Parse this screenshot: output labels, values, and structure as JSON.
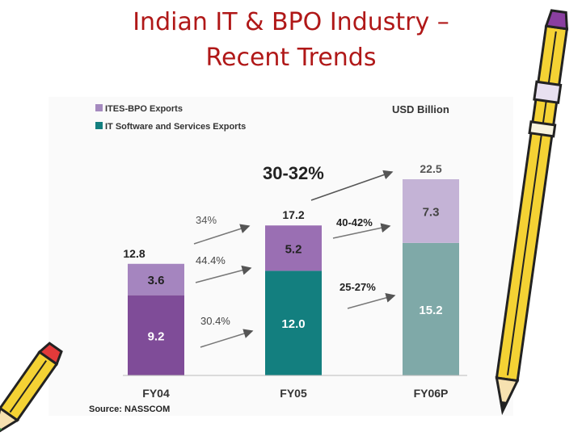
{
  "title": {
    "line1": "Indian IT & BPO Industry –",
    "line2": "Recent Trends"
  },
  "chart_data": {
    "type": "bar",
    "stacked": true,
    "unit_label": "USD Billion",
    "categories": [
      "FY04",
      "FY05",
      "FY06P"
    ],
    "series": [
      {
        "name": "IT Software and Services Exports",
        "values": [
          9.2,
          12.0,
          15.2
        ],
        "labels": [
          "9.2",
          "12.0",
          "15.2"
        ],
        "colors": [
          "#7f4c98",
          "#137f7f",
          "#7fa9a8"
        ]
      },
      {
        "name": "ITES-BPO Exports",
        "values": [
          3.6,
          5.2,
          7.3
        ],
        "labels": [
          "3.6",
          "5.2",
          "7.3"
        ],
        "colors": [
          "#a585bf",
          "#9a6fb3",
          "#c4b3d6"
        ]
      }
    ],
    "totals": [
      12.8,
      17.2,
      22.5
    ],
    "total_labels": [
      "12.8",
      "17.2",
      "22.5"
    ],
    "growth": {
      "it_fy04_fy05": "30.4%",
      "bpo_fy04_fy05": "44.4%",
      "total_fy04_fy05": "34%",
      "it_fy05_fy06": "25-27%",
      "bpo_fy05_fy06": "40-42%",
      "total_overall": "30-32%"
    },
    "legend": {
      "position": "top-left",
      "bpo_color": "#a58abf",
      "it_color": "#137f7f"
    },
    "source": "Source: NASSCOM",
    "ylim": [
      0,
      25
    ]
  },
  "decor": {
    "pencil_right": "pencil-icon",
    "pencil_left": "pencil-icon"
  }
}
